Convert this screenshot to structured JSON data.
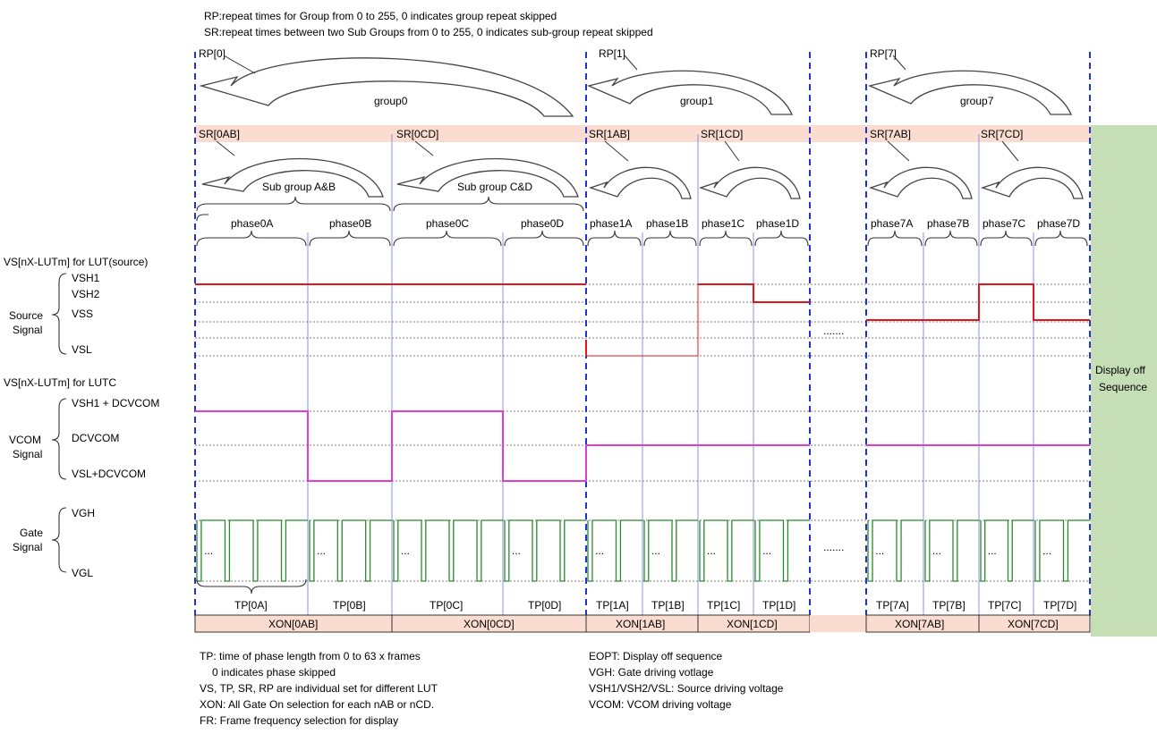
{
  "header": {
    "rp_note": "RP:repeat times for Group from 0 to 255, 0 indicates  group repeat skipped",
    "sr_note": "SR:repeat times between two Sub Groups from 0 to 255, 0 indicates sub-group repeat skipped"
  },
  "groups": [
    {
      "rp": "RP[0]",
      "name": "group0"
    },
    {
      "rp": "RP[1]",
      "name": "group1"
    },
    {
      "rp": "RP[7]",
      "name": "group7"
    }
  ],
  "sr_labels": [
    "SR[0AB]",
    "SR[0CD]",
    "SR[1AB]",
    "SR[1CD]",
    "SR[7AB]",
    "SR[7CD]"
  ],
  "subgroups": [
    "Sub group A&B",
    "Sub group C&D"
  ],
  "phases": [
    "phase0A",
    "phase0B",
    "phase0C",
    "phase0D",
    "phase1A",
    "phase1B",
    "phase1C",
    "phase1D",
    "phase7A",
    "phase7B",
    "phase7C",
    "phase7D"
  ],
  "source": {
    "title": "VS[nX-LUTm] for LUT(source)",
    "levels": [
      "VSH1",
      "VSH2",
      "VSS",
      "VSL"
    ],
    "label_line1": "Source",
    "label_line2": "Signal"
  },
  "vcom": {
    "title": "VS[nX-LUTm] for LUTC",
    "levels": [
      "VSH1 + DCVCOM",
      "DCVCOM",
      "VSL+DCVCOM"
    ],
    "label_line1": "VCOM",
    "label_line2": "Signal"
  },
  "gate": {
    "levels": [
      "VGH",
      "VGL"
    ],
    "label_line1": "Gate",
    "label_line2": "Signal"
  },
  "gap_dots": ".......",
  "pulse_dots": "...",
  "tp_labels": [
    "TP[0A]",
    "TP[0B]",
    "TP[0C]",
    "TP[0D]",
    "TP[1A]",
    "TP[1B]",
    "TP[1C]",
    "TP[1D]",
    "TP[7A]",
    "TP[7B]",
    "TP[7C]",
    "TP[7D]"
  ],
  "xon_labels": [
    "XON[0AB]",
    "XON[0CD]",
    "XON[1AB]",
    "XON[1CD]",
    "XON[7AB]",
    "XON[7CD]"
  ],
  "display_off": {
    "line1": "Display off",
    "line2": "Sequence"
  },
  "notes_left": [
    "TP: time of phase length from 0 to 63 x frames",
    "0 indicates phase skipped",
    "VS, TP, SR, RP are individual set for different LUT",
    "XON: All Gate On selection for each nAB or nCD.",
    "FR: Frame frequency selection for display"
  ],
  "notes_right": [
    "EOPT: Display off sequence",
    "VGH: Gate driving votlage",
    "VSH1/VSH2/VSL: Source driving voltage",
    "VCOM: VCOM driving voltage"
  ],
  "colors": {
    "source_signal": "#e8141b",
    "vcom_signal": "#e63ad8",
    "gate_signal": "#2b8a2b",
    "group_boundary": "#1f33d6",
    "band": "#fbdcd0",
    "display_off_block": "#c5deb5"
  }
}
